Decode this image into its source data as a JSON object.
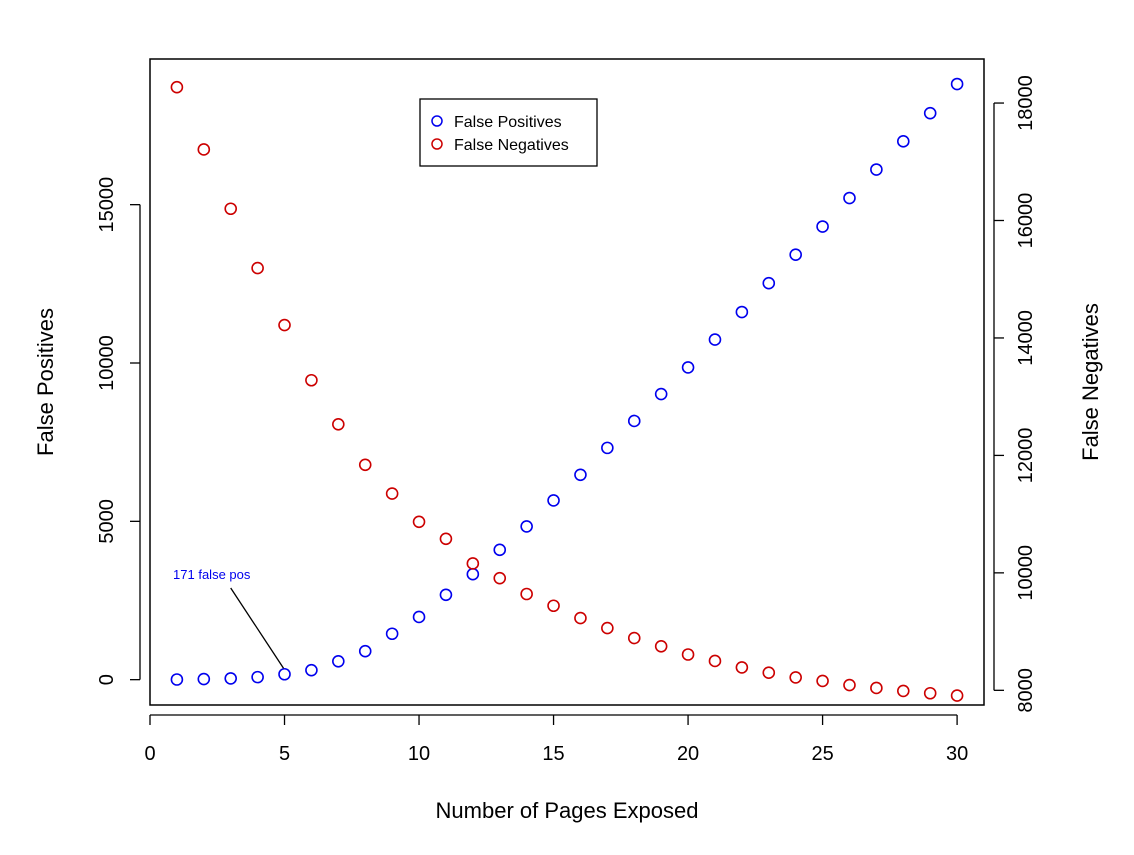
{
  "chart_data": {
    "type": "scatter",
    "x": [
      1,
      2,
      3,
      4,
      5,
      6,
      7,
      8,
      9,
      10,
      11,
      12,
      13,
      14,
      15,
      16,
      17,
      18,
      19,
      20,
      21,
      22,
      23,
      24,
      25,
      26,
      27,
      28,
      29,
      30
    ],
    "series": [
      {
        "name": "False Positives",
        "axis": "left",
        "color": "#0000ee",
        "values": [
          5,
          20,
          40,
          80,
          171,
          300,
          580,
          900,
          1450,
          1980,
          2680,
          3330,
          4100,
          4840,
          5660,
          6470,
          7320,
          8170,
          9020,
          9860,
          10740,
          11610,
          12520,
          13420,
          14310,
          15210,
          16110,
          17000,
          17890,
          18810
        ]
      },
      {
        "name": "False Negatives",
        "axis": "right",
        "color": "#cc0000",
        "values": [
          18270,
          17210,
          16200,
          15190,
          14220,
          13280,
          12530,
          11840,
          11350,
          10870,
          10580,
          10160,
          9910,
          9640,
          9440,
          9230,
          9060,
          8890,
          8750,
          8610,
          8500,
          8390,
          8300,
          8220,
          8160,
          8090,
          8040,
          7990,
          7950,
          7910
        ]
      }
    ],
    "xlabel": "Number of Pages Exposed",
    "ylabel_left": "False Positives",
    "ylabel_right": "False Negatives",
    "xlim": [
      0,
      31
    ],
    "ylim_left": [
      -800,
      19600
    ],
    "ylim_right": [
      7750,
      18750
    ],
    "x_ticks": [
      0,
      5,
      10,
      15,
      20,
      25,
      30
    ],
    "y_ticks_left": [
      0,
      5000,
      10000,
      15000
    ],
    "y_ticks_right": [
      8000,
      10000,
      12000,
      14000,
      16000,
      18000
    ],
    "legend": {
      "placement": "top-center",
      "entries": [
        {
          "label": "False Positives",
          "color": "#0000ee"
        },
        {
          "label": "False Negatives",
          "color": "#cc0000"
        }
      ]
    },
    "grid": false,
    "annotation": {
      "text": "171 false pos",
      "color": "#0000ee",
      "target_x": 5,
      "target_y": 171,
      "label_x": 3,
      "label_y": 3180
    }
  }
}
